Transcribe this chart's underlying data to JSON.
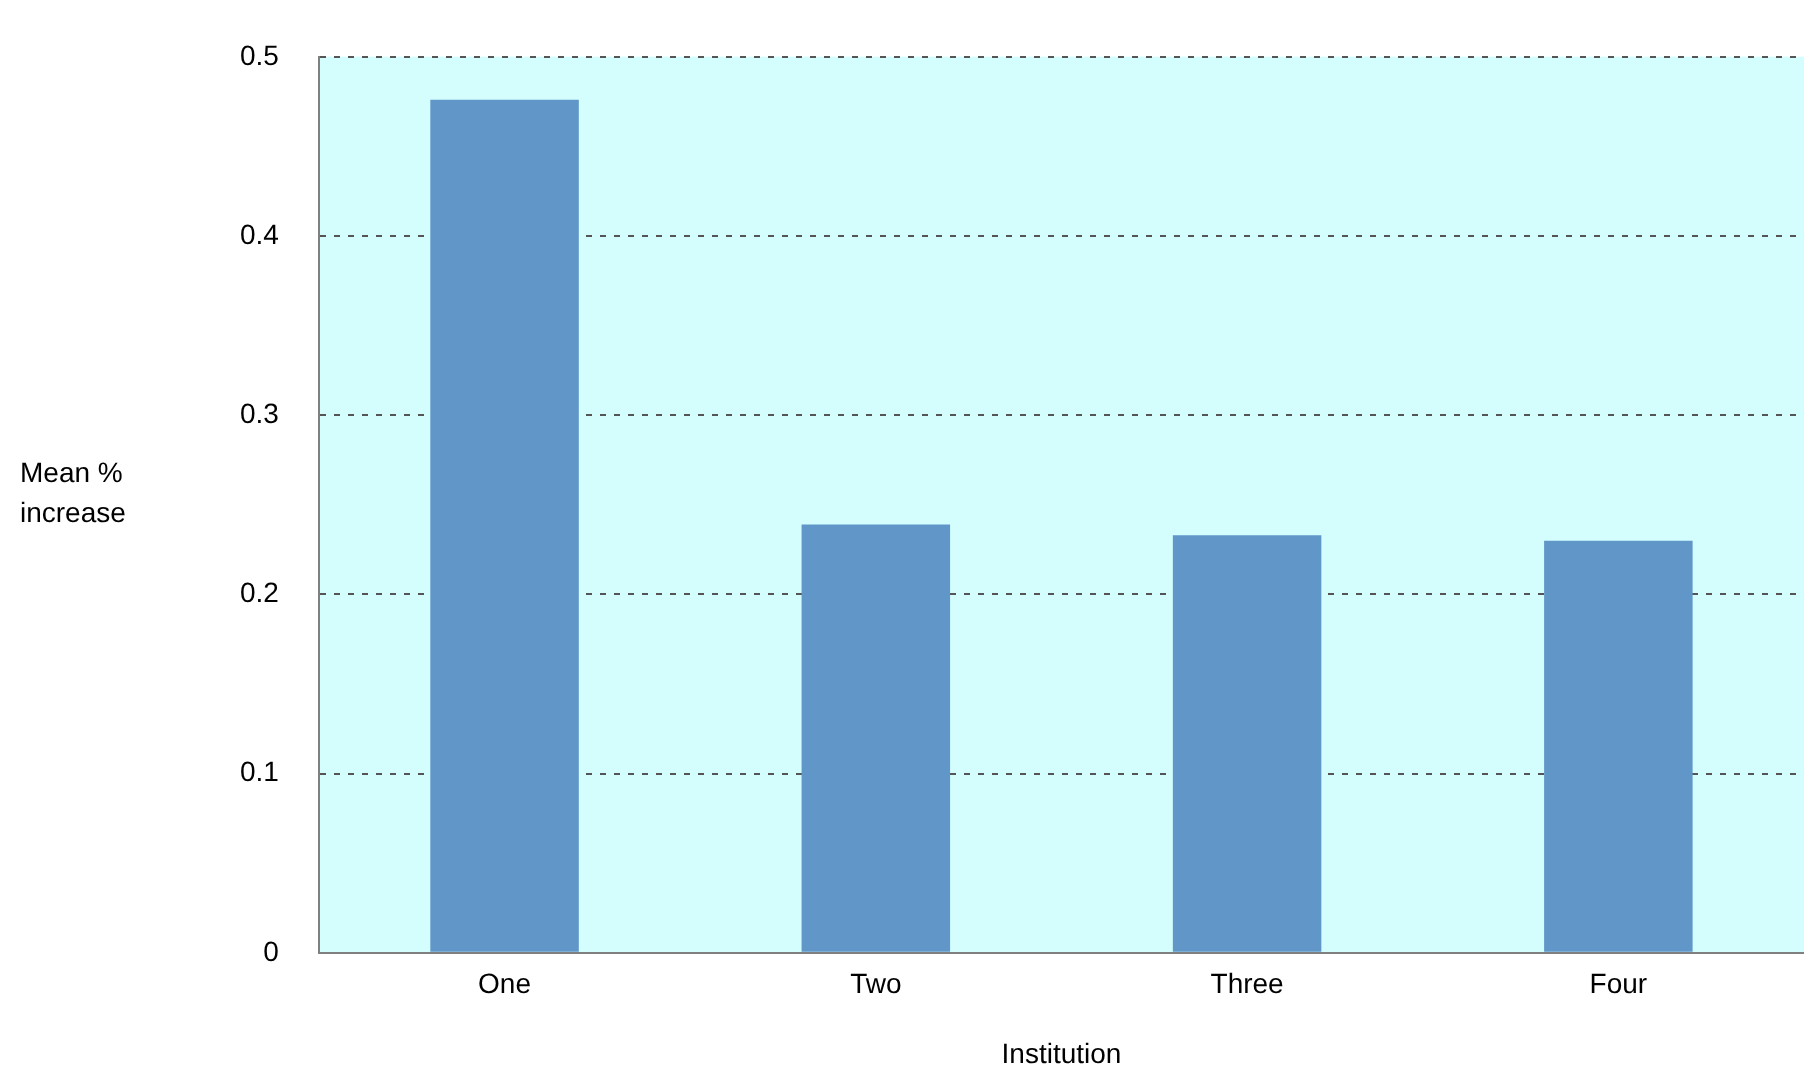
{
  "chart_data": {
    "type": "bar",
    "xlabel": "Institution",
    "ylabel": "Mean % increase",
    "categories": [
      "One",
      "Two",
      "Three",
      "Four"
    ],
    "values": [
      0.476,
      0.239,
      0.233,
      0.23
    ],
    "color": "#6096c8",
    "ylim": [
      0,
      0.5
    ],
    "yticks": [
      0,
      0.1,
      0.2,
      0.3,
      0.4,
      0.5
    ],
    "grid": "y",
    "legend": false
  }
}
